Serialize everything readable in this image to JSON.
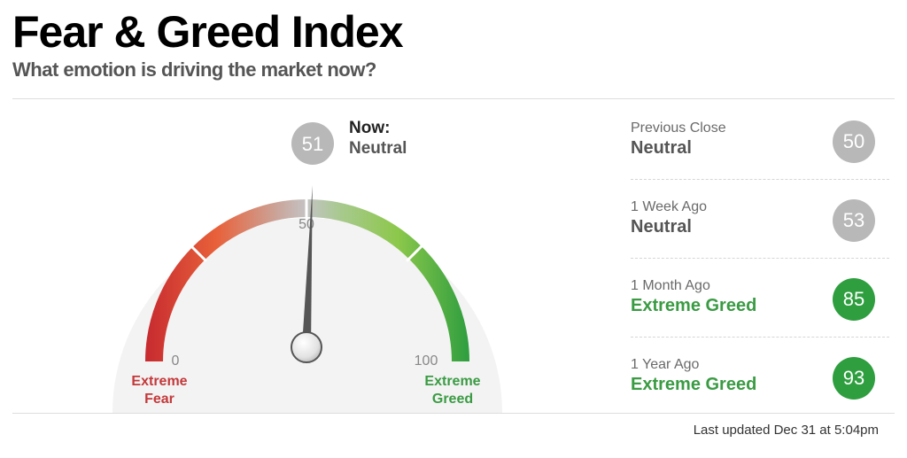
{
  "header": {
    "title": "Fear & Greed Index",
    "subtitle": "What emotion is driving the market now?"
  },
  "gauge": {
    "value": 51,
    "value_label": "51",
    "now_label": "Now:",
    "now_rating": "Neutral",
    "min_label": "0",
    "mid_label": "50",
    "max_label": "100",
    "fear_label_line1": "Extreme",
    "fear_label_line2": "Fear",
    "greed_label_line1": "Extreme",
    "greed_label_line2": "Greed",
    "colors": {
      "extreme_fear": "#c72a2f",
      "fear": "#e8613a",
      "neutral": "#c4c4c4",
      "greed": "#8cc84b",
      "extreme_greed": "#2f9e3f",
      "needle": "#555555",
      "dial_background": "#f3f3f3"
    }
  },
  "history": [
    {
      "period": "Previous Close",
      "rating": "Neutral",
      "value": "50",
      "tone": "neutral"
    },
    {
      "period": "1 Week Ago",
      "rating": "Neutral",
      "value": "53",
      "tone": "neutral"
    },
    {
      "period": "1 Month Ago",
      "rating": "Extreme Greed",
      "value": "85",
      "tone": "greed"
    },
    {
      "period": "1 Year Ago",
      "rating": "Extreme Greed",
      "value": "93",
      "tone": "greed"
    }
  ],
  "footer": {
    "last_updated": "Last updated Dec 31 at 5:04pm"
  }
}
